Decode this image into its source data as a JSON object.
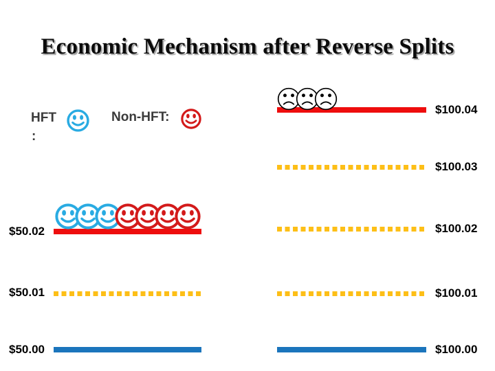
{
  "title": "Economic Mechanism after Reverse Splits",
  "legend": {
    "hft_label": "HFT",
    "hft_colon": ":",
    "nonhft_label": "Non-HFT:"
  },
  "colors": {
    "hft_blue": "#29abe2",
    "nonhft_red": "#d31a1a",
    "solid_red_line": "#ee0d0d",
    "solid_blue_line": "#1b75bc",
    "dotted_gold_line": "#fdbf17",
    "sad_face_black": "#000000"
  },
  "left_book": {
    "rows": [
      {
        "label": "$50.02",
        "line_style": "solid-red",
        "faces": [
          "hft",
          "hft",
          "hft",
          "nonhft",
          "nonhft",
          "nonhft",
          "nonhft"
        ]
      },
      {
        "label": "$50.01",
        "line_style": "dotted-gold",
        "faces": []
      },
      {
        "label": "$50.00",
        "line_style": "solid-blue",
        "faces": []
      }
    ]
  },
  "right_book": {
    "rows": [
      {
        "label": "$100.04",
        "line_style": "solid-red",
        "faces": [
          "sad",
          "sad",
          "sad"
        ]
      },
      {
        "label": "$100.03",
        "line_style": "dotted-gold",
        "faces": []
      },
      {
        "label": "$100.02",
        "line_style": "dotted-gold",
        "faces": []
      },
      {
        "label": "$100.01",
        "line_style": "dotted-gold",
        "faces": []
      },
      {
        "label": "$100.00",
        "line_style": "solid-blue",
        "faces": []
      }
    ]
  }
}
